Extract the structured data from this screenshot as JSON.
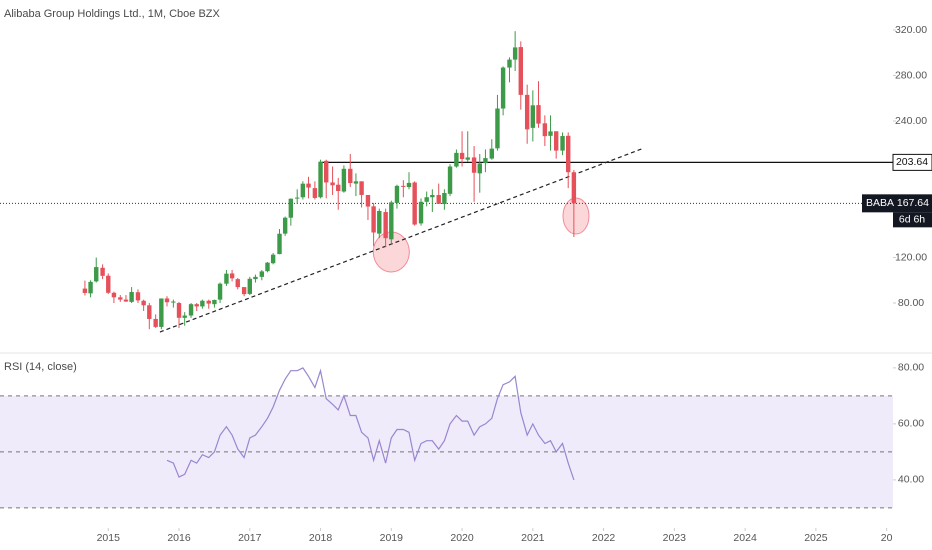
{
  "chart_data": [
    {
      "type": "candlestick",
      "title": "Alibaba Group Holdings Ltd., 1M, Cboe BZX",
      "up_color": "#3c9a48",
      "down_color": "#e5505a",
      "x": [
        2014.67,
        2014.75,
        2014.83,
        2014.92,
        2015.0,
        2015.08,
        2015.17,
        2015.25,
        2015.33,
        2015.42,
        2015.5,
        2015.58,
        2015.67,
        2015.75,
        2015.83,
        2015.92,
        2016.0,
        2016.08,
        2016.17,
        2016.25,
        2016.33,
        2016.42,
        2016.5,
        2016.58,
        2016.67,
        2016.75,
        2016.83,
        2016.92,
        2017.0,
        2017.08,
        2017.17,
        2017.25,
        2017.33,
        2017.42,
        2017.5,
        2017.58,
        2017.67,
        2017.75,
        2017.83,
        2017.92,
        2018.0,
        2018.08,
        2018.17,
        2018.25,
        2018.33,
        2018.42,
        2018.5,
        2018.58,
        2018.67,
        2018.75,
        2018.83,
        2018.92,
        2019.0,
        2019.08,
        2019.17,
        2019.25,
        2019.33,
        2019.42,
        2019.5,
        2019.58,
        2019.67,
        2019.75,
        2019.83,
        2019.92,
        2020.0,
        2020.08,
        2020.17,
        2020.25,
        2020.33,
        2020.42,
        2020.5,
        2020.58,
        2020.67,
        2020.75,
        2020.83,
        2020.92,
        2021.0,
        2021.08,
        2021.17,
        2021.25,
        2021.33,
        2021.42,
        2021.5,
        2021.58
      ],
      "open": [
        92.7,
        88.5,
        99,
        111,
        104,
        89,
        85,
        83,
        81,
        89.5,
        82,
        78,
        66,
        59,
        84,
        81,
        80,
        67,
        69,
        79,
        77,
        82,
        79,
        83,
        97,
        106,
        101,
        94,
        88,
        101,
        103,
        108,
        115,
        123,
        141,
        155,
        172,
        173,
        185,
        181,
        173,
        205,
        186,
        184,
        178,
        198,
        185,
        187,
        175,
        165,
        141,
        160,
        136,
        168,
        183,
        182,
        186,
        150,
        169,
        173,
        175,
        167,
        176,
        200,
        212,
        206,
        208,
        194,
        203,
        207,
        216,
        251,
        287,
        294,
        305,
        263,
        234,
        254,
        238,
        227,
        231,
        214,
        227,
        195
      ],
      "high": [
        99.7,
        100,
        120,
        114,
        106,
        90,
        87,
        87,
        94,
        92,
        83,
        80,
        70,
        84,
        86,
        83,
        81,
        72,
        80,
        80,
        83,
        83,
        83,
        98,
        109,
        109,
        102,
        94,
        103,
        105,
        109,
        116,
        124,
        145,
        156,
        172,
        180,
        187,
        191,
        187,
        206,
        206,
        200,
        190,
        201,
        211,
        194,
        187,
        175,
        168,
        163,
        163,
        170,
        184,
        188,
        195,
        187,
        172,
        178,
        180,
        185,
        180,
        202,
        215,
        231,
        231,
        218,
        211,
        215,
        224,
        263,
        288,
        296,
        319,
        310,
        272,
        267,
        275,
        245,
        245,
        231,
        230,
        230,
        197
      ],
      "low": [
        86.6,
        85,
        98,
        101,
        88,
        80,
        81,
        81,
        80,
        80,
        73,
        57,
        58,
        57,
        77,
        76,
        58,
        60,
        67,
        73,
        75,
        75,
        76,
        80,
        95,
        99,
        92,
        86,
        87,
        98,
        100,
        107,
        114,
        123,
        139,
        148,
        167,
        171,
        172,
        171,
        172,
        172,
        175,
        162,
        177,
        182,
        174,
        164,
        153,
        130,
        137,
        129,
        131,
        163,
        173,
        180,
        148,
        148,
        165,
        160,
        170,
        162,
        174,
        199,
        200,
        204,
        169,
        177,
        195,
        206,
        214,
        245,
        274,
        284,
        250,
        220,
        222,
        234,
        218,
        214,
        207,
        210,
        181,
        138
      ],
      "close": [
        88.85,
        98.6,
        111.6,
        103.9,
        89,
        85,
        83,
        81.3,
        89.7,
        82.3,
        78,
        66,
        59,
        84,
        80.7,
        81.3,
        67,
        69,
        79,
        77,
        82,
        79.5,
        82.7,
        97,
        105.8,
        101.7,
        94,
        87.8,
        101.3,
        103,
        107.8,
        115.5,
        122.5,
        140.9,
        155,
        171.7,
        172.7,
        184.9,
        181.5,
        172.4,
        204.3,
        186,
        183.5,
        178.5,
        198,
        185.5,
        187,
        175,
        164.8,
        142,
        160.9,
        137,
        168.5,
        183,
        182.4,
        185.6,
        149,
        169,
        173,
        175,
        167.2,
        176.7,
        200,
        212,
        206.6,
        208,
        194.5,
        202.7,
        207.4,
        215.7,
        251,
        287,
        294,
        304.7,
        263,
        232.7,
        253.8,
        237.7,
        226.7,
        230.9,
        214,
        226.8,
        195,
        167.64
      ],
      "xlim": [
        2013.47,
        2026.09
      ],
      "xticks": [
        2015,
        2016,
        2017,
        2018,
        2019,
        2020,
        2021,
        2022,
        2023,
        2024,
        2025,
        {
          "value": 2026,
          "label": "20"
        }
      ],
      "ylim": [
        38.7,
        346.4
      ],
      "yticks": [
        {
          "value": 80,
          "label": "80.00"
        },
        {
          "value": 120,
          "label": "120.00"
        },
        {
          "value": 240,
          "label": "240.00"
        },
        {
          "value": 280,
          "label": "280.00"
        },
        {
          "value": 320,
          "label": "320.00"
        }
      ],
      "hline": {
        "y": 203.64,
        "x_start": 2018.02
      },
      "last_price": {
        "symbol": "BABA",
        "value": 167.64,
        "countdown": "6d 6h"
      },
      "trendline": {
        "x": [
          2015.73,
          2022.56
        ],
        "y": [
          54.5,
          216
        ]
      },
      "highlights": [
        {
          "x": 2019.0,
          "y": 124.9
        },
        {
          "x": 2021.61,
          "y": 156.5
        }
      ]
    },
    {
      "type": "line",
      "title": "RSI (14, close)",
      "color": "#9a86d0",
      "band_color": "#efebfa",
      "x": [
        2014.67,
        2014.75,
        2014.83,
        2014.92,
        2015.0,
        2015.08,
        2015.17,
        2015.25,
        2015.33,
        2015.42,
        2015.5,
        2015.58,
        2015.67,
        2015.75,
        2015.83,
        2015.92,
        2016.0,
        2016.08,
        2016.17,
        2016.25,
        2016.33,
        2016.42,
        2016.5,
        2016.58,
        2016.67,
        2016.75,
        2016.83,
        2016.92,
        2017.0,
        2017.08,
        2017.17,
        2017.25,
        2017.33,
        2017.42,
        2017.5,
        2017.58,
        2017.67,
        2017.75,
        2017.83,
        2017.92,
        2018.0,
        2018.08,
        2018.17,
        2018.25,
        2018.33,
        2018.42,
        2018.5,
        2018.58,
        2018.67,
        2018.75,
        2018.83,
        2018.92,
        2019.0,
        2019.08,
        2019.17,
        2019.25,
        2019.33,
        2019.42,
        2019.5,
        2019.58,
        2019.67,
        2019.75,
        2019.83,
        2019.92,
        2020.0,
        2020.08,
        2020.17,
        2020.25,
        2020.33,
        2020.42,
        2020.5,
        2020.58,
        2020.67,
        2020.75,
        2020.83,
        2020.92,
        2021.0,
        2021.08,
        2021.17,
        2021.25,
        2021.33,
        2021.42,
        2021.5,
        2021.58
      ],
      "values": [
        null,
        null,
        null,
        null,
        null,
        null,
        null,
        null,
        null,
        null,
        null,
        null,
        null,
        null,
        47,
        46,
        41,
        42,
        47,
        46,
        49,
        48,
        50,
        56,
        59,
        56,
        51,
        48,
        55,
        56,
        59,
        62,
        66,
        72,
        76,
        79,
        79,
        80,
        77,
        73,
        79,
        69,
        67,
        65,
        70,
        63,
        63,
        57,
        55,
        47,
        54,
        46,
        55,
        58,
        58,
        57,
        47,
        53,
        54,
        54,
        51,
        54,
        60,
        63,
        61,
        61,
        56,
        59,
        60,
        62,
        69,
        74,
        75,
        77,
        64,
        56,
        60,
        56,
        53,
        54,
        50,
        53,
        46,
        40
      ],
      "xlim": [
        2013.47,
        2026.09
      ],
      "ylim": [
        23.9,
        84.6
      ],
      "yticks": [
        {
          "value": 40,
          "label": "40.00"
        },
        {
          "value": 60,
          "label": "60.00"
        },
        {
          "value": 80,
          "label": "80.00"
        }
      ],
      "levels": [
        70,
        50,
        30
      ]
    }
  ]
}
